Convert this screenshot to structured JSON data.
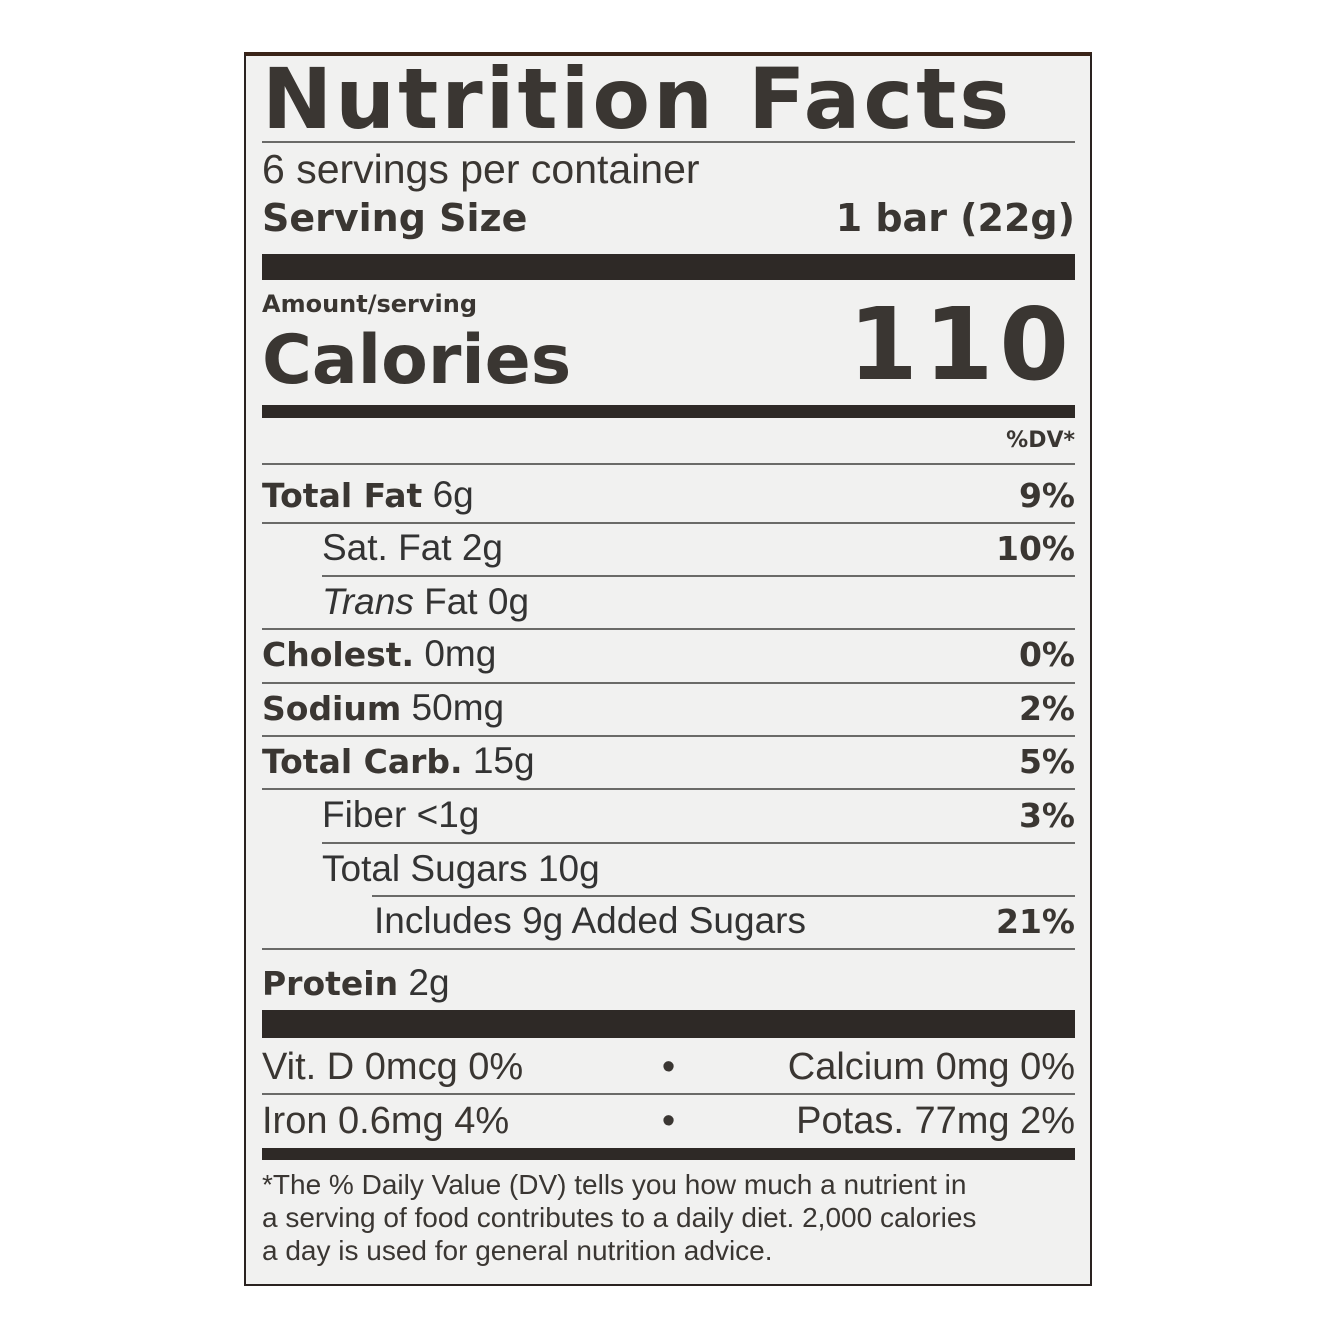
{
  "label": {
    "title": "Nutrition Facts",
    "servings_per_container": "6 servings per container",
    "serving_size_label": "Serving Size",
    "serving_size_value": "1 bar (22g)",
    "amount_per_serving": "Amount/serving",
    "calories_label": "Calories",
    "calories_value": "110",
    "dv_header": "%DV*",
    "nutrients": [
      {
        "name": "Total Fat",
        "amount": "6g",
        "dv": "9%"
      },
      {
        "name": "Sat. Fat",
        "amount": "2g",
        "dv": "10%"
      },
      {
        "name_italic": "Trans",
        "name": "Fat",
        "amount": "0g",
        "dv": ""
      },
      {
        "name": "Cholest.",
        "amount": "0mg",
        "dv": "0%"
      },
      {
        "name": "Sodium",
        "amount": "50mg",
        "dv": "2%"
      },
      {
        "name": "Total Carb.",
        "amount": "15g",
        "dv": "5%"
      },
      {
        "name": "Fiber",
        "amount": "<1g",
        "dv": "3%"
      },
      {
        "name": "Total Sugars",
        "amount": "10g",
        "dv": ""
      },
      {
        "name": "Includes 9g Added Sugars",
        "amount": "",
        "dv": "21%"
      },
      {
        "name": "Protein",
        "amount": "2g",
        "dv": ""
      }
    ],
    "vitamins": [
      {
        "left": "Vit. D 0mcg 0%",
        "right": "Calcium 0mg 0%"
      },
      {
        "left": "Iron 0.6mg 4%",
        "right": "Potas. 77mg 2%"
      }
    ],
    "separator": "•",
    "footnote": [
      "*The % Daily Value (DV) tells you how much a nutrient in",
      "a serving of food contributes to a daily diet. 2,000 calories",
      "a day is used for general nutrition advice."
    ]
  }
}
